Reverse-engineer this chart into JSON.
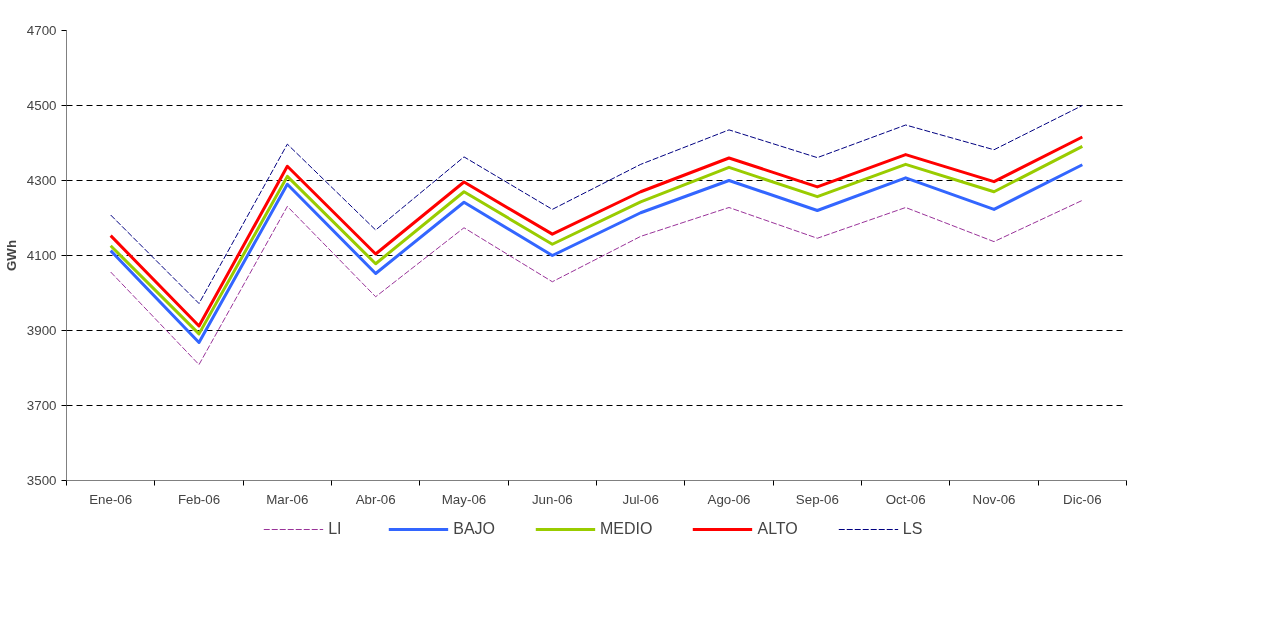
{
  "chart_data": {
    "type": "line",
    "ylabel": "GWh",
    "categories": [
      "Ene-06",
      "Feb-06",
      "Mar-06",
      "Abr-06",
      "May-06",
      "Jun-06",
      "Jul-06",
      "Ago-06",
      "Sep-06",
      "Oct-06",
      "Nov-06",
      "Dic-06"
    ],
    "series": [
      {
        "name": "LI",
        "color": "#993399",
        "line_style": "dashed",
        "values": [
          4056,
          3809,
          4231,
          3990,
          4174,
          4030,
          4151,
          4228,
          4146,
          4228,
          4137,
          4247
        ]
      },
      {
        "name": "BAJO",
        "color": "#3366ff",
        "line_style": "solid",
        "values": [
          4113,
          3868,
          4290,
          4052,
          4242,
          4100,
          4214,
          4300,
          4220,
          4307,
          4223,
          4342
        ]
      },
      {
        "name": "MEDIO",
        "color": "#99cc00",
        "line_style": "solid",
        "values": [
          4126,
          3891,
          4311,
          4078,
          4270,
          4130,
          4243,
          4335,
          4257,
          4343,
          4270,
          4391
        ]
      },
      {
        "name": "ALTO",
        "color": "#ff0000",
        "line_style": "solid",
        "values": [
          4153,
          3912,
          4338,
          4104,
          4296,
          4157,
          4270,
          4360,
          4283,
          4369,
          4297,
          4416
        ]
      },
      {
        "name": "LS",
        "color": "#000080",
        "line_style": "dashed",
        "values": [
          4208,
          3972,
          4397,
          4168,
          4363,
          4223,
          4343,
          4435,
          4361,
          4448,
          4382,
          4500
        ]
      }
    ],
    "ylim": [
      3500,
      4700
    ],
    "yticks": [
      3500,
      3700,
      3900,
      4100,
      4300,
      4500,
      4700
    ],
    "grid": "y",
    "legend": "bottom"
  }
}
